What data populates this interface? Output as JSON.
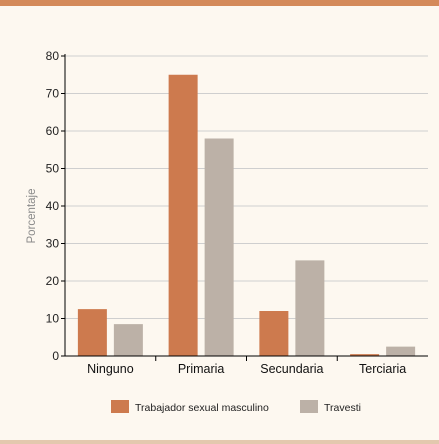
{
  "chart_data": {
    "type": "bar",
    "categories": [
      "Ninguno",
      "Primaria",
      "Secundaria",
      "Terciaria"
    ],
    "series": [
      {
        "name": "Trabajador sexual masculino",
        "values": [
          12.5,
          75,
          12,
          0.5
        ],
        "color": "#cd7a4e"
      },
      {
        "name": "Travesti",
        "values": [
          8.5,
          58,
          25.5,
          2.5
        ],
        "color": "#bcb1a7"
      }
    ],
    "ylabel": "Porcentaje",
    "xlabel": "",
    "ylim": [
      0,
      80
    ],
    "yticks": [
      0,
      10,
      20,
      30,
      40,
      50,
      60,
      70,
      80
    ],
    "grid": true,
    "legend": "bottom"
  },
  "colors": {
    "accent_bar": "#d48a5a",
    "background": "#fdf8f0",
    "grid": "#cfcfcf"
  }
}
